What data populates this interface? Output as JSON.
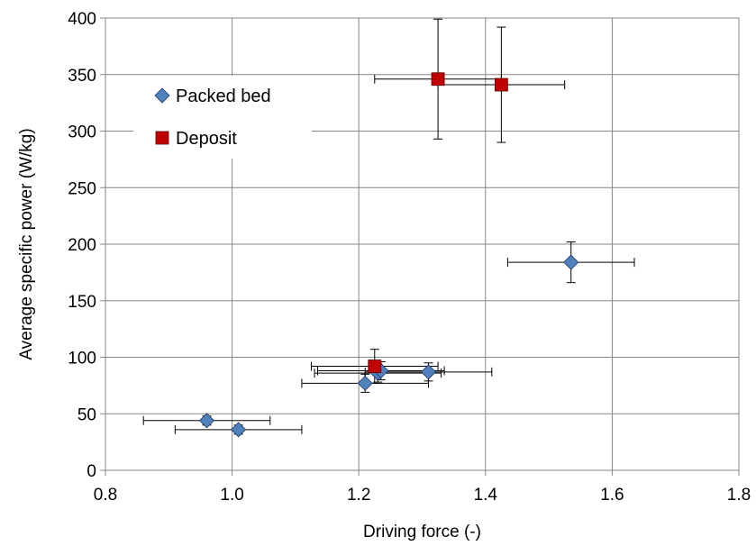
{
  "chart_data": {
    "type": "scatter",
    "title": "",
    "xlabel": "Driving force (-)",
    "ylabel": "Average specific power (W/kg)",
    "xlim": [
      0.8,
      1.8
    ],
    "ylim": [
      0,
      400
    ],
    "xticks": [
      "0.8",
      "1.0",
      "1.2",
      "1.4",
      "1.6",
      "1.8"
    ],
    "yticks": [
      "0",
      "50",
      "100",
      "150",
      "200",
      "250",
      "300",
      "350",
      "400"
    ],
    "grid": true,
    "legend_position": "top-left",
    "series": [
      {
        "name": "Packed bed",
        "marker": "diamond",
        "color": "#4F81BD",
        "points": [
          {
            "x": 0.96,
            "y": 44,
            "xerr": 0.1,
            "yerr": 4
          },
          {
            "x": 1.01,
            "y": 36,
            "xerr": 0.1,
            "yerr": 4
          },
          {
            "x": 1.21,
            "y": 77,
            "xerr": 0.1,
            "yerr": 8
          },
          {
            "x": 1.23,
            "y": 86,
            "xerr": 0.1,
            "yerr": 8
          },
          {
            "x": 1.235,
            "y": 88,
            "xerr": 0.1,
            "yerr": 8
          },
          {
            "x": 1.31,
            "y": 87,
            "xerr": 0.1,
            "yerr": 8
          },
          {
            "x": 1.535,
            "y": 184,
            "xerr": 0.1,
            "yerr": 18
          }
        ]
      },
      {
        "name": "Deposit",
        "marker": "square",
        "color": "#C00000",
        "points": [
          {
            "x": 1.225,
            "y": 92,
            "xerr": 0.1,
            "yerr": 15
          },
          {
            "x": 1.325,
            "y": 346,
            "xerr": 0.1,
            "yerr": 53
          },
          {
            "x": 1.425,
            "y": 341,
            "xerr": 0.1,
            "yerr": 51
          }
        ]
      }
    ]
  }
}
